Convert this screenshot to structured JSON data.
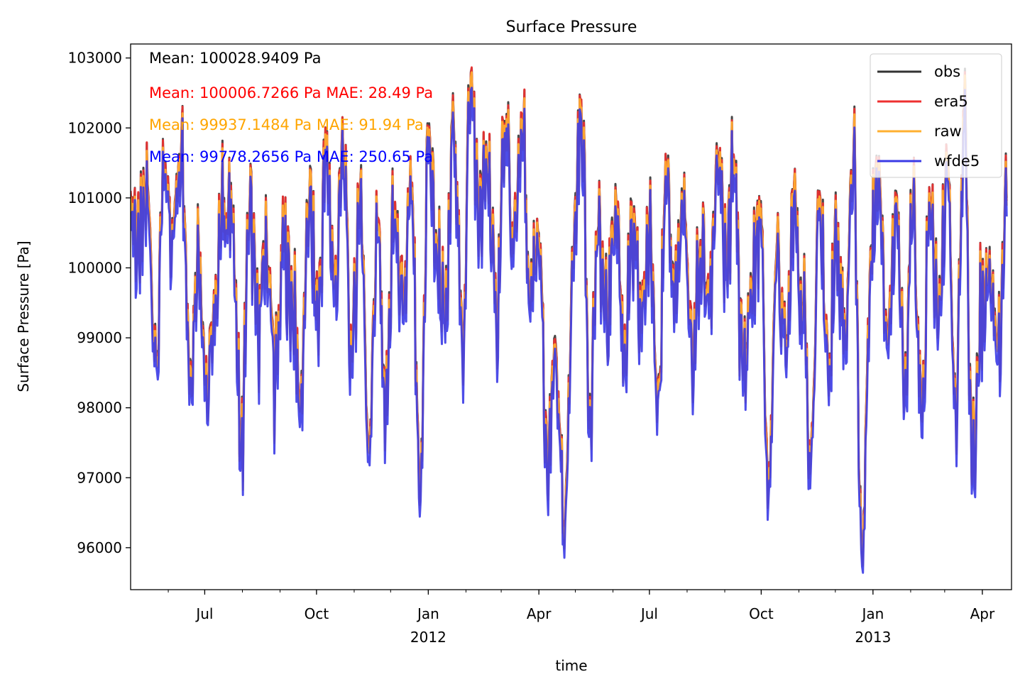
{
  "chart_data": {
    "type": "line",
    "title": "Surface Pressure",
    "xlabel": "time",
    "ylabel": "Surface Pressure [Pa]",
    "xlim": [
      "2011-05-01",
      "2013-04-25"
    ],
    "ylim": [
      95400,
      103200
    ],
    "y_ticks": [
      96000,
      97000,
      98000,
      99000,
      100000,
      101000,
      102000,
      103000
    ],
    "x_ticks": [
      {
        "date": "2011-07-01",
        "label": "Jul",
        "year": ""
      },
      {
        "date": "2011-10-01",
        "label": "Oct",
        "year": ""
      },
      {
        "date": "2012-01-01",
        "label": "Jan",
        "year": "2012"
      },
      {
        "date": "2012-04-01",
        "label": "Apr",
        "year": ""
      },
      {
        "date": "2012-07-01",
        "label": "Jul",
        "year": ""
      },
      {
        "date": "2012-10-01",
        "label": "Oct",
        "year": ""
      },
      {
        "date": "2013-01-01",
        "label": "Jan",
        "year": "2013"
      },
      {
        "date": "2013-04-01",
        "label": "Apr",
        "year": ""
      }
    ],
    "grid": false,
    "legend_position": "top-right",
    "annotations": [
      {
        "text": "Mean: 100028.9409 Pa",
        "color": "#000000"
      },
      {
        "text": "Mean: 100006.7266 Pa MAE: 28.49 Pa",
        "color": "#ff0000"
      },
      {
        "text": "Mean: 99937.1484 Pa MAE: 91.94 Pa",
        "color": "#ffa500"
      },
      {
        "text": "Mean: 99778.2656 Pa MAE: 250.65 Pa",
        "color": "#0000ff"
      }
    ],
    "series": [
      {
        "name": "obs",
        "color": "#333333",
        "offset": 0
      },
      {
        "name": "era5",
        "color": "#ee3030",
        "offset": -22
      },
      {
        "name": "raw",
        "color": "#ffb030",
        "offset": -92
      },
      {
        "name": "wfde5",
        "color": "#3a3ae6",
        "offset": -251
      }
    ],
    "x": [
      "2011-05-01",
      "2011-05-08",
      "2011-05-15",
      "2011-05-22",
      "2011-05-29",
      "2011-06-05",
      "2011-06-12",
      "2011-06-19",
      "2011-06-26",
      "2011-07-03",
      "2011-07-10",
      "2011-07-17",
      "2011-07-24",
      "2011-07-31",
      "2011-08-07",
      "2011-08-14",
      "2011-08-21",
      "2011-08-28",
      "2011-09-04",
      "2011-09-11",
      "2011-09-18",
      "2011-09-25",
      "2011-10-02",
      "2011-10-09",
      "2011-10-16",
      "2011-10-23",
      "2011-10-30",
      "2011-11-06",
      "2011-11-13",
      "2011-11-20",
      "2011-11-27",
      "2011-12-04",
      "2011-12-11",
      "2011-12-18",
      "2011-12-25",
      "2012-01-01",
      "2012-01-08",
      "2012-01-15",
      "2012-01-22",
      "2012-01-29",
      "2012-02-05",
      "2012-02-12",
      "2012-02-19",
      "2012-02-26",
      "2012-03-04",
      "2012-03-11",
      "2012-03-18",
      "2012-03-25",
      "2012-04-01",
      "2012-04-08",
      "2012-04-15",
      "2012-04-22",
      "2012-04-29",
      "2012-05-06",
      "2012-05-13",
      "2012-05-20",
      "2012-05-27",
      "2012-06-03",
      "2012-06-10",
      "2012-06-17",
      "2012-06-24",
      "2012-07-01",
      "2012-07-08",
      "2012-07-15",
      "2012-07-22",
      "2012-07-29",
      "2012-08-05",
      "2012-08-12",
      "2012-08-19",
      "2012-08-26",
      "2012-09-02",
      "2012-09-09",
      "2012-09-16",
      "2012-09-23",
      "2012-09-30",
      "2012-10-07",
      "2012-10-14",
      "2012-10-21",
      "2012-10-28",
      "2012-11-04",
      "2012-11-11",
      "2012-11-18",
      "2012-11-25",
      "2012-12-02",
      "2012-12-09",
      "2012-12-16",
      "2012-12-23",
      "2012-12-30",
      "2013-01-06",
      "2013-01-13",
      "2013-01-20",
      "2013-01-27",
      "2013-02-03",
      "2013-02-10",
      "2013-02-17",
      "2013-02-24",
      "2013-03-03",
      "2013-03-10",
      "2013-03-17",
      "2013-03-24",
      "2013-03-31",
      "2013-04-07",
      "2013-04-14",
      "2013-04-21"
    ],
    "obs": [
      101100,
      100300,
      101200,
      98800,
      101400,
      100600,
      102000,
      98700,
      100400,
      98100,
      99900,
      101000,
      100700,
      97600,
      100900,
      99100,
      100500,
      98500,
      100300,
      99600,
      98200,
      100900,
      99400,
      101700,
      99800,
      101600,
      98800,
      101200,
      97500,
      100600,
      98100,
      100800,
      99400,
      101100,
      96700,
      101800,
      100400,
      99200,
      102100,
      99000,
      102800,
      100700,
      101500,
      99300,
      102100,
      100300,
      102200,
      99500,
      100500,
      97000,
      98900,
      96100,
      100300,
      102400,
      98200,
      100600,
      99200,
      101200,
      98900,
      100300,
      99400,
      100600,
      98400,
      101100,
      99800,
      100800,
      98700,
      100400,
      99600,
      101600,
      100100,
      101500,
      98500,
      99800,
      100800,
      97000,
      100400,
      98900,
      101200,
      99500,
      97400,
      101100,
      98600,
      100500,
      99200,
      101700,
      95900,
      100300,
      101600,
      99000,
      101100,
      98300,
      100900,
      97900,
      101000,
      99300,
      101500,
      98100,
      102300,
      97200,
      99500,
      100300,
      98900,
      101000
    ]
  }
}
